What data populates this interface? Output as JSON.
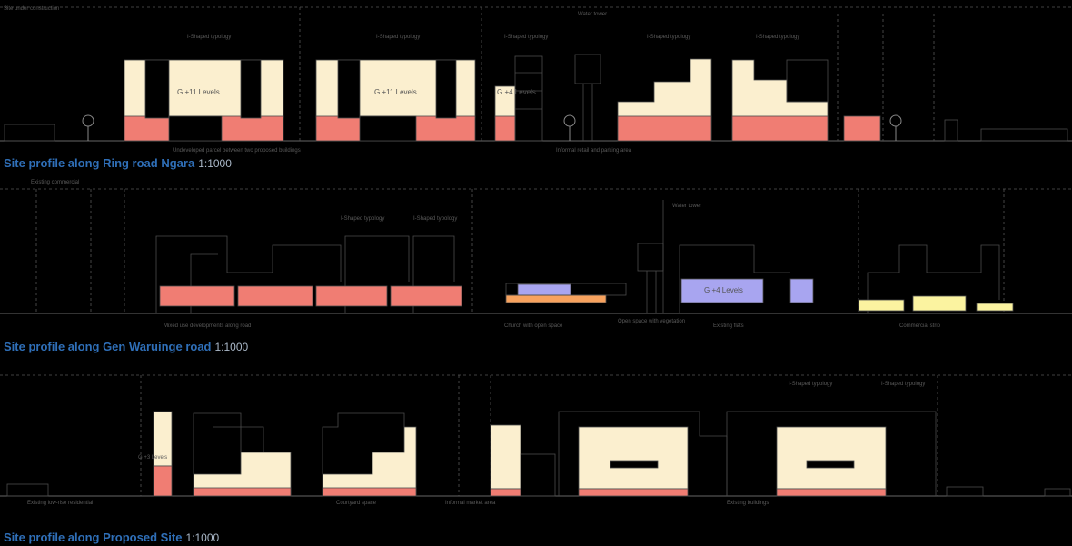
{
  "profiles": [
    {
      "title": "Site profile along Ring road Ngara",
      "scale": "1:1000",
      "labels": [
        "Site under construction",
        "I-Shaped typology",
        "I-Shaped typology",
        "I-Shaped typology",
        "I-Shaped typology",
        "I-Shaped typology",
        "Water tower",
        "G +11 Levels",
        "G +11 Levels",
        "G +4 Levels",
        "Undeveloped parcel between two proposed buildings",
        "Informal retail and parking area"
      ]
    },
    {
      "title": "Site profile along Gen Waruinge road",
      "scale": "1:1000",
      "labels": [
        "Existing commercial",
        "I-Shaped typology",
        "I-Shaped typology",
        "Water tower",
        "G +4 Levels",
        "Mixed use developments along road",
        "Church with open space",
        "Open space with vegetation",
        "Existing flats",
        "Commercial strip"
      ]
    },
    {
      "title": "Site profile along Proposed Site",
      "scale": "1:1000",
      "labels": [
        "I-Shaped typology",
        "I-Shaped typology",
        "Existing low-rise residential",
        "G +3 Levels",
        "Courtyard space",
        "Informal market area",
        "Existing buildings"
      ]
    }
  ],
  "colors": {
    "cream": "#fbefcf",
    "salmon": "#f07d73",
    "lavender": "#a8a5f0",
    "yellow": "#fbf3a0",
    "orange": "#f7a25e",
    "line": "#4b4b4b",
    "title": "#2f6fb8"
  }
}
